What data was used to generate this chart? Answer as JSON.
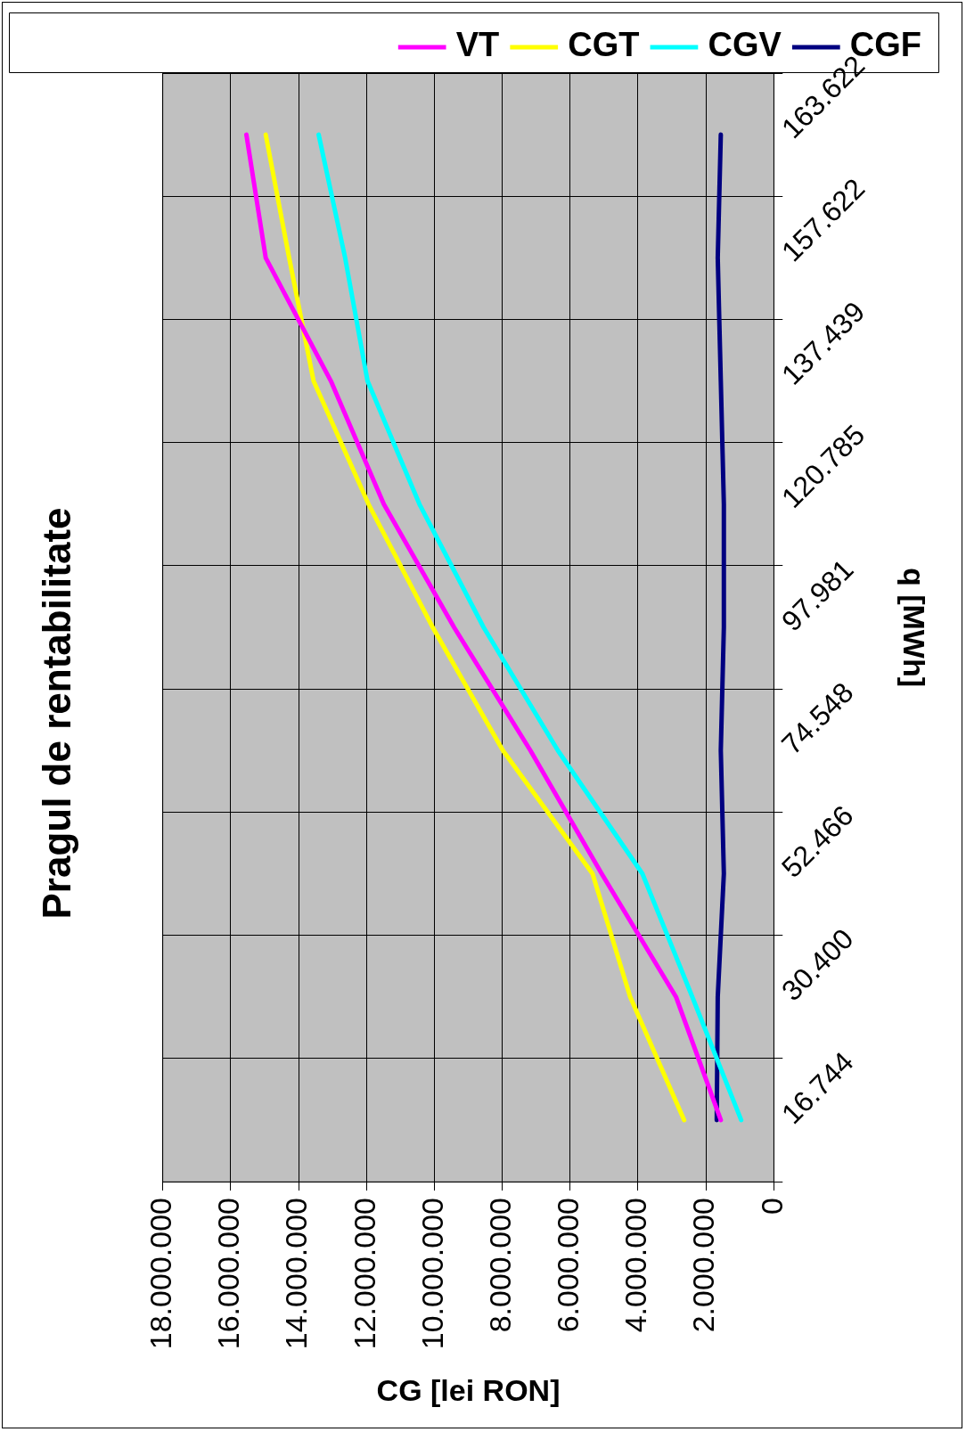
{
  "chart_data": {
    "type": "line",
    "orientation": "horizontal",
    "title": "Pragul de rentabilitate",
    "xlabel": "CG [lei RON]",
    "ylabel": "q [MWh]",
    "categories": [
      "163.622",
      "157.622",
      "137.439",
      "120.785",
      "97.981",
      "74.548",
      "52.466",
      "30.400",
      "16.744"
    ],
    "series": [
      {
        "name": "VT",
        "color": "#ff00ff",
        "values": [
          15540000,
          14970000,
          13050000,
          11490000,
          9420000,
          7170000,
          5070000,
          2880000,
          1560000
        ]
      },
      {
        "name": "CGT",
        "color": "#ffff00",
        "values": [
          14970000,
          14280000,
          13560000,
          11940000,
          10050000,
          7980000,
          5340000,
          4230000,
          2640000
        ]
      },
      {
        "name": "CGV",
        "color": "#00ffff",
        "values": [
          13410000,
          12630000,
          11970000,
          10440000,
          8550000,
          6360000,
          3870000,
          2400000,
          960000
        ]
      },
      {
        "name": "CGF",
        "color": "#000080",
        "values": [
          1560000,
          1650000,
          1560000,
          1470000,
          1470000,
          1560000,
          1470000,
          1650000,
          1680000
        ]
      }
    ],
    "xlim": [
      18000000,
      0
    ],
    "xticks": [
      {
        "value": 18000000,
        "label": "18.000.000"
      },
      {
        "value": 16000000,
        "label": "16.000.000"
      },
      {
        "value": 14000000,
        "label": "14.000.000"
      },
      {
        "value": 12000000,
        "label": "12.000.000"
      },
      {
        "value": 10000000,
        "label": "10.000.000"
      },
      {
        "value": 8000000,
        "label": "8.000.000"
      },
      {
        "value": 6000000,
        "label": "6.000.000"
      },
      {
        "value": 4000000,
        "label": "4.000.000"
      },
      {
        "value": 2000000,
        "label": "2.000.000"
      },
      {
        "value": 0,
        "label": "0"
      }
    ],
    "grid": true,
    "legend": "top right",
    "marker": "none",
    "line_style": "solid"
  }
}
